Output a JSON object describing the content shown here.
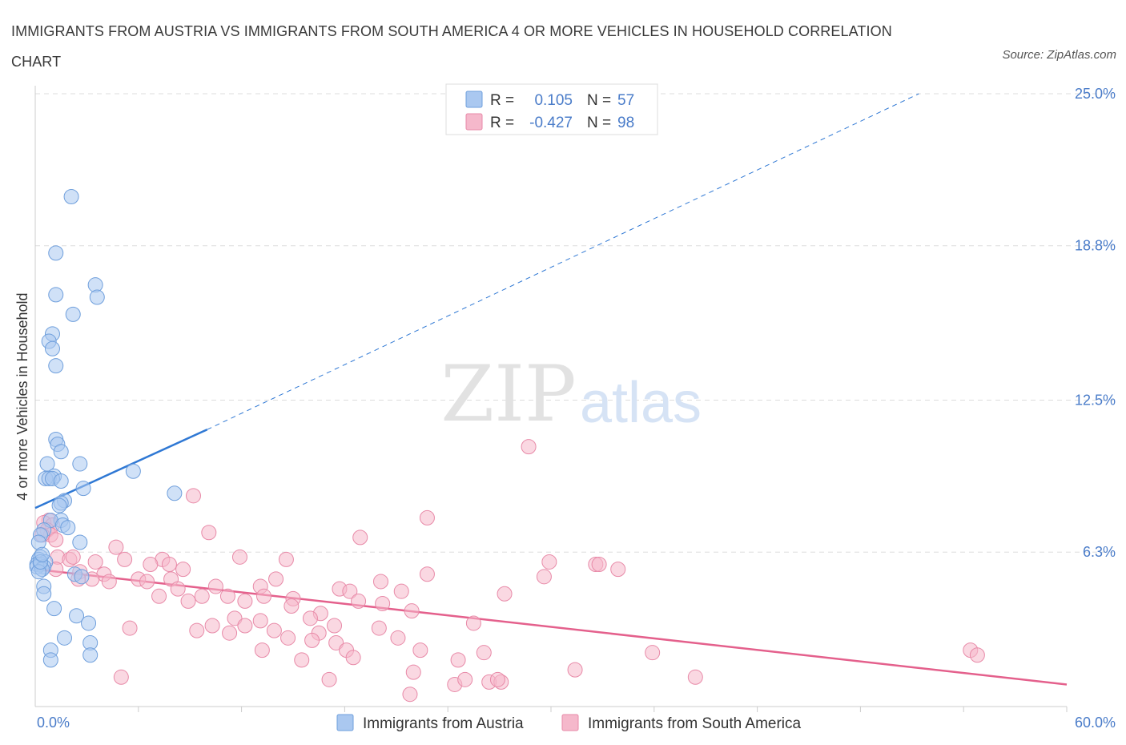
{
  "title": "IMMIGRANTS FROM AUSTRIA VS IMMIGRANTS FROM SOUTH AMERICA 4 OR MORE VEHICLES IN HOUSEHOLD CORRELATION CHART",
  "source": "Source: ZipAtlas.com",
  "watermark": {
    "zip": "ZIP",
    "atlas": "atlas"
  },
  "colors": {
    "austria_fill": "#aac8f0",
    "austria_stroke": "#6f9fdc",
    "austria_line": "#2f78d4",
    "sa_fill": "#f5b8cb",
    "sa_stroke": "#e88aa8",
    "sa_line": "#e4608c",
    "accent_text": "#4a7cc9",
    "grid": "#dddddd"
  },
  "legend": {
    "austria": {
      "r_label": "R =",
      "r_value": "0.105",
      "n_label": "N =",
      "n_value": "57"
    },
    "south_america": {
      "r_label": "R =",
      "r_value": "-0.427",
      "n_label": "N =",
      "n_value": "98"
    }
  },
  "chart_data": {
    "type": "scatter",
    "title": "IMMIGRANTS FROM AUSTRIA VS IMMIGRANTS FROM SOUTH AMERICA 4 OR MORE VEHICLES IN HOUSEHOLD CORRELATION CHART",
    "xlabel": "",
    "ylabel": "4 or more Vehicles in Household",
    "xlim": [
      0,
      60
    ],
    "ylim": [
      0,
      25
    ],
    "x_tick_labels": [
      "0.0%",
      "60.0%"
    ],
    "y_ticks": [
      6.3,
      12.5,
      18.8,
      25.0
    ],
    "y_tick_labels": [
      "6.3%",
      "12.5%",
      "18.8%",
      "25.0%"
    ],
    "grid": true,
    "legend_position": "top-center",
    "series": [
      {
        "name": "Immigrants from Austria",
        "points": [
          [
            2.1,
            20.8
          ],
          [
            1.2,
            18.5
          ],
          [
            3.5,
            17.2
          ],
          [
            1.2,
            16.8
          ],
          [
            3.6,
            16.7
          ],
          [
            2.2,
            16.0
          ],
          [
            1.0,
            15.2
          ],
          [
            0.8,
            14.9
          ],
          [
            1.0,
            14.6
          ],
          [
            1.2,
            13.9
          ],
          [
            1.2,
            10.9
          ],
          [
            1.3,
            10.7
          ],
          [
            1.5,
            10.4
          ],
          [
            2.6,
            9.9
          ],
          [
            0.7,
            9.9
          ],
          [
            5.7,
            9.6
          ],
          [
            1.1,
            9.4
          ],
          [
            0.6,
            9.3
          ],
          [
            0.8,
            9.3
          ],
          [
            1.0,
            9.3
          ],
          [
            1.5,
            9.2
          ],
          [
            2.8,
            8.9
          ],
          [
            8.1,
            8.7
          ],
          [
            1.7,
            8.4
          ],
          [
            1.5,
            8.3
          ],
          [
            1.4,
            8.2
          ],
          [
            1.5,
            7.6
          ],
          [
            0.9,
            7.6
          ],
          [
            1.6,
            7.4
          ],
          [
            1.9,
            7.3
          ],
          [
            0.5,
            7.2
          ],
          [
            0.3,
            7.0
          ],
          [
            0.2,
            6.7
          ],
          [
            2.6,
            6.7
          ],
          [
            0.3,
            6.1
          ],
          [
            0.2,
            6.0
          ],
          [
            0.6,
            5.9
          ],
          [
            0.1,
            5.8
          ],
          [
            0.3,
            5.8
          ],
          [
            0.5,
            5.7
          ],
          [
            0.1,
            5.7
          ],
          [
            0.4,
            5.6
          ],
          [
            0.2,
            5.5
          ],
          [
            2.3,
            5.4
          ],
          [
            2.7,
            5.3
          ],
          [
            0.5,
            4.9
          ],
          [
            0.5,
            4.6
          ],
          [
            1.1,
            4.0
          ],
          [
            2.4,
            3.7
          ],
          [
            3.1,
            3.4
          ],
          [
            1.7,
            2.8
          ],
          [
            3.2,
            2.6
          ],
          [
            0.9,
            2.3
          ],
          [
            3.2,
            2.1
          ],
          [
            0.9,
            1.9
          ],
          [
            0.3,
            5.9
          ],
          [
            0.4,
            6.2
          ]
        ]
      },
      {
        "name": "Immigrants from South America",
        "points": [
          [
            28.7,
            10.6
          ],
          [
            9.2,
            8.6
          ],
          [
            22.8,
            7.7
          ],
          [
            0.8,
            7.6
          ],
          [
            0.5,
            7.5
          ],
          [
            1.0,
            7.4
          ],
          [
            0.7,
            7.2
          ],
          [
            0.9,
            7.0
          ],
          [
            10.1,
            7.1
          ],
          [
            0.4,
            7.0
          ],
          [
            18.9,
            6.9
          ],
          [
            1.2,
            6.8
          ],
          [
            4.7,
            6.5
          ],
          [
            1.3,
            6.1
          ],
          [
            2.0,
            6.0
          ],
          [
            2.2,
            6.1
          ],
          [
            7.4,
            6.0
          ],
          [
            5.2,
            6.0
          ],
          [
            11.9,
            6.1
          ],
          [
            14.6,
            6.0
          ],
          [
            7.8,
            5.8
          ],
          [
            6.7,
            5.8
          ],
          [
            3.5,
            5.9
          ],
          [
            29.9,
            5.9
          ],
          [
            32.6,
            5.8
          ],
          [
            32.8,
            5.8
          ],
          [
            33.9,
            5.6
          ],
          [
            8.6,
            5.6
          ],
          [
            1.2,
            5.6
          ],
          [
            2.6,
            5.5
          ],
          [
            4.0,
            5.4
          ],
          [
            6.0,
            5.2
          ],
          [
            6.5,
            5.1
          ],
          [
            7.9,
            5.2
          ],
          [
            3.3,
            5.2
          ],
          [
            4.3,
            5.1
          ],
          [
            2.5,
            5.2
          ],
          [
            14.0,
            5.2
          ],
          [
            20.1,
            5.1
          ],
          [
            22.8,
            5.4
          ],
          [
            29.6,
            5.3
          ],
          [
            10.5,
            4.9
          ],
          [
            13.1,
            4.9
          ],
          [
            17.7,
            4.8
          ],
          [
            18.3,
            4.7
          ],
          [
            21.3,
            4.7
          ],
          [
            7.2,
            4.5
          ],
          [
            8.3,
            4.8
          ],
          [
            9.7,
            4.5
          ],
          [
            12.2,
            4.3
          ],
          [
            11.2,
            4.5
          ],
          [
            13.3,
            4.5
          ],
          [
            15.0,
            4.4
          ],
          [
            8.9,
            4.3
          ],
          [
            18.8,
            4.3
          ],
          [
            20.2,
            4.2
          ],
          [
            14.9,
            4.1
          ],
          [
            27.3,
            4.6
          ],
          [
            21.9,
            3.9
          ],
          [
            16.6,
            3.8
          ],
          [
            16.0,
            3.6
          ],
          [
            11.6,
            3.6
          ],
          [
            12.2,
            3.3
          ],
          [
            13.1,
            3.5
          ],
          [
            10.3,
            3.3
          ],
          [
            17.4,
            3.3
          ],
          [
            5.5,
            3.2
          ],
          [
            9.4,
            3.1
          ],
          [
            11.3,
            3.0
          ],
          [
            13.9,
            3.1
          ],
          [
            16.5,
            3.0
          ],
          [
            20.0,
            3.2
          ],
          [
            25.5,
            3.4
          ],
          [
            14.7,
            2.8
          ],
          [
            17.5,
            2.6
          ],
          [
            21.1,
            2.8
          ],
          [
            16.1,
            2.7
          ],
          [
            18.1,
            2.3
          ],
          [
            22.4,
            2.3
          ],
          [
            26.1,
            2.2
          ],
          [
            13.2,
            2.3
          ],
          [
            24.6,
            1.9
          ],
          [
            18.5,
            2.0
          ],
          [
            15.5,
            1.9
          ],
          [
            35.9,
            2.2
          ],
          [
            54.4,
            2.3
          ],
          [
            54.8,
            2.1
          ],
          [
            22.0,
            1.4
          ],
          [
            31.4,
            1.5
          ],
          [
            5.0,
            1.2
          ],
          [
            17.1,
            1.1
          ],
          [
            26.4,
            1.0
          ],
          [
            27.1,
            1.0
          ],
          [
            26.9,
            1.1
          ],
          [
            24.4,
            0.9
          ],
          [
            38.4,
            1.2
          ],
          [
            21.8,
            0.5
          ],
          [
            25.0,
            1.1
          ]
        ]
      }
    ],
    "trend_lines": [
      {
        "series": "Immigrants from Austria",
        "x": [
          0,
          10
        ],
        "y": [
          8.1,
          11.3
        ],
        "extended_dashed_to": [
          51.4,
          25.0
        ]
      },
      {
        "series": "Immigrants from South America",
        "x": [
          0,
          60
        ],
        "y": [
          5.6,
          0.9
        ]
      }
    ]
  }
}
